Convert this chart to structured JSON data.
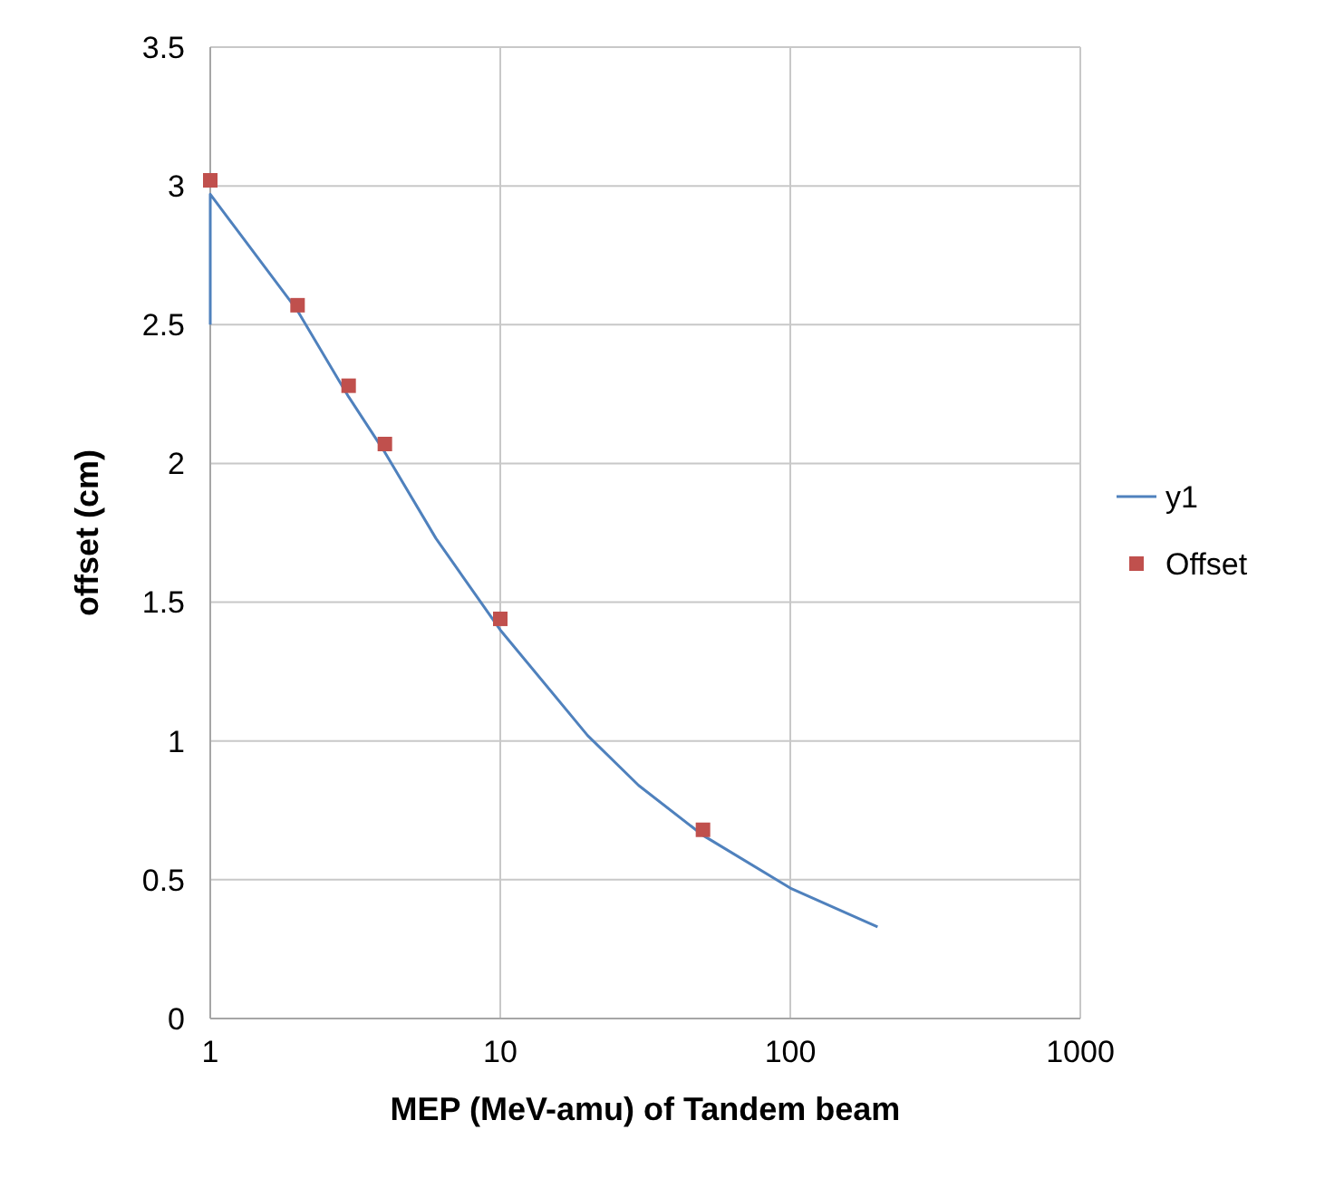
{
  "chart_data": {
    "type": "scatter",
    "xlabel": "MEP (MeV-amu) of Tandem beam",
    "ylabel": "offset (cm)",
    "log": "x",
    "xlim": [
      1,
      1000
    ],
    "xticks": [
      1,
      10,
      100,
      1000
    ],
    "ylim": [
      0,
      3.5
    ],
    "yticks": [
      0,
      0.5,
      1,
      1.5,
      2,
      2.5,
      3,
      3.5
    ],
    "grid": true,
    "legend": "right",
    "series": [
      {
        "name": "y1",
        "type": "line",
        "color": "#4f81bd",
        "marker": "none",
        "x": [
          1,
          1,
          2,
          3,
          4,
          6,
          10,
          20,
          30,
          50,
          100,
          200
        ],
        "values": [
          2.5,
          2.97,
          2.55,
          2.24,
          2.04,
          1.73,
          1.4,
          1.02,
          0.84,
          0.66,
          0.47,
          0.33
        ]
      },
      {
        "name": "Offset",
        "color": "#c0504d",
        "marker": "square",
        "x": [
          1,
          2,
          3,
          4,
          10,
          50
        ],
        "values": [
          3.02,
          2.57,
          2.28,
          2.07,
          1.44,
          0.68
        ]
      }
    ]
  }
}
